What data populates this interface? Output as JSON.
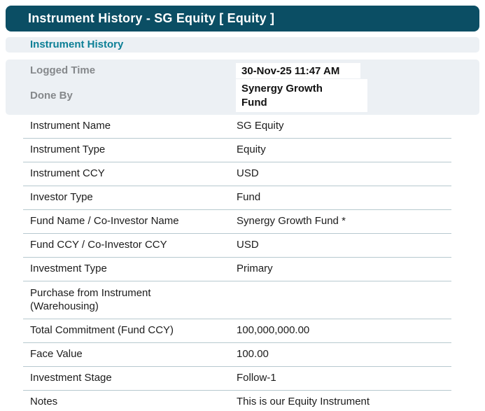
{
  "window": {
    "title": "Instrument History - SG Equity [ Equity ]"
  },
  "section": {
    "header": "Instrument History"
  },
  "meta": {
    "logged_time": {
      "label": "Logged Time",
      "value": "30-Nov-25 11:47 AM"
    },
    "done_by": {
      "label": "Done By",
      "value": "Synergy Growth Fund"
    }
  },
  "fields": {
    "rows": [
      {
        "label": "Instrument Name",
        "value": "SG Equity"
      },
      {
        "label": "Instrument Type",
        "value": "Equity"
      },
      {
        "label": "Instrument CCY",
        "value": "USD"
      },
      {
        "label": "Investor Type",
        "value": "Fund"
      },
      {
        "label": "Fund Name / Co-Investor Name",
        "value": "Synergy Growth Fund *"
      },
      {
        "label": "Fund CCY / Co-Investor CCY",
        "value": "USD"
      },
      {
        "label": "Investment Type",
        "value": "Primary"
      },
      {
        "label": "Purchase from Instrument (Warehousing)",
        "value": ""
      },
      {
        "label": "Total Commitment (Fund CCY)",
        "value": "100,000,000.00"
      },
      {
        "label": "Face Value",
        "value": "100.00"
      },
      {
        "label": "Investment Stage",
        "value": "Follow-1"
      },
      {
        "label": "Notes",
        "value": "This is our Equity Instrument"
      }
    ]
  },
  "colors": {
    "title_bar_bg": "#0b4e64",
    "accent_teal": "#0c7f96",
    "panel_bg": "#ecf0f4",
    "divider": "#b7c9cf",
    "label_gray": "#85888b",
    "text": "#1c1c1c"
  }
}
